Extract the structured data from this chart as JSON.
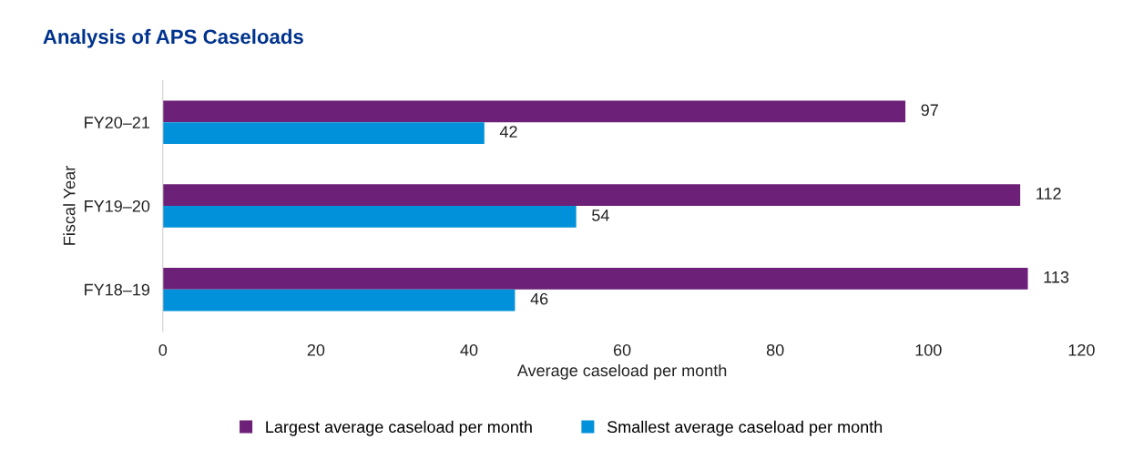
{
  "chart_data": {
    "type": "bar",
    "orientation": "horizontal",
    "title": "Analysis of APS Caseloads",
    "xlabel": "Average caseload per month",
    "ylabel": "Fiscal Year",
    "categories": [
      "FY20–21",
      "FY19–20",
      "FY18–19"
    ],
    "series": [
      {
        "name": "Largest average caseload per month",
        "color": "#6d2077",
        "values": [
          97,
          112,
          113
        ]
      },
      {
        "name": "Smallest average caseload per month",
        "color": "#0091da",
        "values": [
          42,
          54,
          46
        ]
      }
    ],
    "xlim": [
      0,
      120
    ],
    "xticks": [
      0,
      20,
      40,
      60,
      80,
      100,
      120
    ],
    "grid": false,
    "legend": "bottom",
    "data_labels": true
  }
}
